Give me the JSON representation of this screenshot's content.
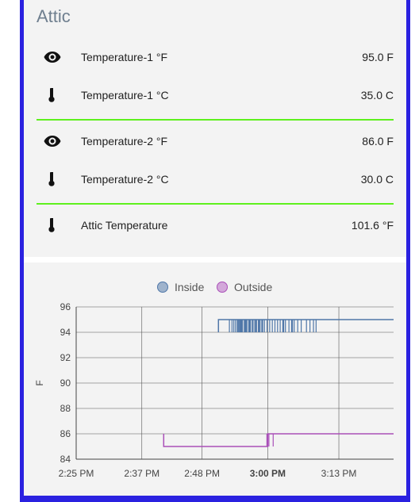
{
  "card": {
    "title": "Attic"
  },
  "entities": [
    {
      "icon": "eye-icon",
      "label": "Temperature-1 °F",
      "value": "95.0 F"
    },
    {
      "icon": "thermometer-icon",
      "label": "Temperature-1 °C",
      "value": "35.0 C"
    },
    {
      "icon": "eye-icon",
      "label": "Temperature-2 °F",
      "value": "86.0 F"
    },
    {
      "icon": "thermometer-icon",
      "label": "Temperature-2 °C",
      "value": "30.0 C"
    },
    {
      "icon": "thermometer-icon",
      "label": "Attic Temperature",
      "value": "101.6 °F"
    }
  ],
  "colors": {
    "accent_divider": "#5ef01e",
    "frame": "#2a21e0",
    "inside": "#4f77a8",
    "outside": "#a94fb8"
  },
  "chart_data": {
    "type": "line",
    "legend": [
      "Inside",
      "Outside"
    ],
    "legend_placement": "top-center",
    "ylabel": "F",
    "ylim": [
      84,
      96
    ],
    "yticks": [
      "96",
      "94",
      "92",
      "90",
      "88",
      "86",
      "84"
    ],
    "xticks": [
      "2:25 PM",
      "2:37 PM",
      "2:48 PM",
      "3:00 PM",
      "3:13 PM"
    ],
    "xlim": [
      "2:25 PM",
      "3:23 PM"
    ],
    "grid": true,
    "series": [
      {
        "name": "Inside",
        "color": "#4f77a8",
        "points": [
          [
            "2:51 PM",
            94
          ],
          [
            "2:51 PM",
            95
          ],
          [
            "3:23 PM",
            95
          ]
        ],
        "note": "dense spikes to 94 between 2:53 PM and 3:09 PM"
      },
      {
        "name": "Outside",
        "color": "#a94fb8",
        "points": [
          [
            "2:41 PM",
            86
          ],
          [
            "2:41 PM",
            85
          ],
          [
            "3:00 PM",
            85
          ],
          [
            "3:00 PM",
            86
          ],
          [
            "3:23 PM",
            86
          ]
        ]
      }
    ]
  }
}
